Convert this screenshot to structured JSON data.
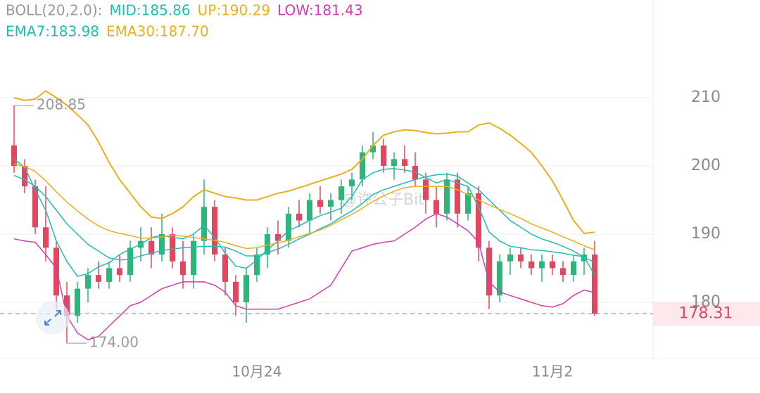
{
  "chart_data": {
    "type": "candlestick",
    "legend_rows": [
      [
        {
          "text": "BOLL(20,2.0):",
          "color": "#9a9a9a"
        },
        {
          "text": "MID:185.86",
          "color": "#22bcb2"
        },
        {
          "text": "UP:190.29",
          "color": "#e8b020"
        },
        {
          "text": "LOW:181.43",
          "color": "#d23fae"
        }
      ],
      [
        {
          "text": "EMA7:183.98",
          "color": "#22bcb2"
        },
        {
          "text": "EMA30:187.70",
          "color": "#e8b020"
        }
      ]
    ],
    "watermark": "@许公子Bit",
    "categories": [
      null,
      null,
      null,
      null,
      null,
      null,
      null,
      null,
      null,
      null,
      null,
      null,
      null,
      null,
      null,
      null,
      null,
      null,
      null,
      null,
      null,
      null,
      null,
      "10月24",
      null,
      null,
      null,
      null,
      null,
      null,
      null,
      null,
      null,
      null,
      null,
      null,
      null,
      null,
      null,
      null,
      null,
      null,
      null,
      null,
      null,
      null,
      null,
      null,
      null,
      null,
      null,
      "11月2",
      null,
      null,
      null,
      null
    ],
    "open": [
      203,
      200,
      197,
      191,
      188,
      181,
      178,
      182,
      184,
      183,
      185,
      184,
      188,
      189,
      187,
      190,
      186,
      184,
      189,
      194,
      187,
      183,
      180,
      184,
      187,
      190,
      189,
      193,
      192,
      195,
      194,
      195,
      197,
      198,
      202,
      203,
      200,
      201,
      200,
      198,
      195,
      193,
      198,
      193,
      196,
      188,
      181,
      186,
      187,
      186,
      185,
      186,
      185,
      184,
      186,
      187
    ],
    "high": [
      208.85,
      201,
      198,
      197,
      189,
      183,
      183,
      185,
      186,
      186,
      187,
      189,
      191,
      191,
      193,
      191,
      189,
      190,
      198,
      195,
      188,
      184,
      185,
      188,
      191,
      192,
      194,
      195,
      196,
      197,
      196,
      198,
      199,
      203,
      205,
      204,
      202,
      203,
      202,
      199,
      197,
      199,
      199,
      197,
      197,
      189,
      187,
      188,
      188,
      187,
      187,
      187,
      186,
      187,
      188,
      189
    ],
    "low": [
      199,
      196,
      190,
      186,
      179,
      174,
      177,
      180,
      182,
      182,
      183,
      183,
      186,
      185,
      186,
      185,
      182,
      182,
      187,
      186,
      181,
      178,
      177,
      183,
      185,
      187,
      188,
      191,
      190,
      193,
      192,
      193,
      195,
      197,
      201,
      199,
      198,
      199,
      197,
      193,
      191,
      192,
      191,
      192,
      186,
      179,
      180,
      184,
      185,
      184,
      183,
      184,
      183,
      183,
      184,
      178
    ],
    "close": [
      200,
      197,
      191,
      188,
      181,
      178,
      182,
      184,
      183,
      185,
      184,
      188,
      189,
      187,
      190,
      186,
      184,
      189,
      194,
      187,
      183,
      180,
      184,
      187,
      190,
      189,
      193,
      192,
      195,
      194,
      195,
      197,
      198,
      202,
      203,
      200,
      201,
      200,
      198,
      195,
      193,
      198,
      193,
      196,
      188,
      181,
      186,
      187,
      186,
      185,
      186,
      185,
      184,
      186,
      187,
      178.31
    ],
    "up_color": "#2fb47c",
    "down_color": "#e2475f",
    "series": [
      {
        "color": "#e8b020",
        "width": 2,
        "values": [
          210,
          209.6,
          209.8,
          211,
          210,
          208.9,
          207.5,
          206,
          203.5,
          200.5,
          198,
          196,
          194,
          192.5,
          192.3,
          193,
          194,
          195.5,
          196.5,
          196,
          195.5,
          195.3,
          195,
          195,
          195.5,
          196,
          196.3,
          196.8,
          197.3,
          197.8,
          198.3,
          198.8,
          199.5,
          201,
          203,
          204.5,
          205,
          205.3,
          205.2,
          204.9,
          204.7,
          204.8,
          205,
          205,
          206,
          206.3,
          205.5,
          204.5,
          203.3,
          202,
          200,
          197.8,
          195,
          192,
          190.1,
          190.29
        ]
      },
      {
        "color": "#22bcb2",
        "width": 1.5,
        "values": [
          198.6,
          198,
          197,
          195.5,
          193.5,
          191.5,
          190,
          188.5,
          187.5,
          186.5,
          186.2,
          186.3,
          186.8,
          187.2,
          187.6,
          187.8,
          188,
          188.1,
          188.2,
          188.2,
          188.1,
          187.5,
          186.8,
          186.8,
          187.3,
          187.8,
          188.5,
          189.3,
          190,
          190.8,
          191.5,
          192.5,
          193.4,
          194.5,
          195.8,
          196.5,
          197,
          197.5,
          198,
          198.4,
          198.7,
          198.8,
          198.5,
          197.5,
          196.5,
          195,
          193.5,
          192,
          191,
          190,
          189.3,
          188.8,
          188.2,
          187.5,
          186.6,
          185.86
        ]
      },
      {
        "color": "#d23fae",
        "width": 1.5,
        "values": [
          189.3,
          189,
          188.8,
          187,
          185,
          178,
          175.5,
          174.5,
          175,
          176.5,
          178,
          179.5,
          180,
          181,
          182,
          182.5,
          183,
          183,
          183,
          182.5,
          181.5,
          179.5,
          179,
          179,
          179,
          179,
          179.5,
          180,
          180.5,
          181.5,
          182.5,
          185,
          187.5,
          188,
          188.5,
          188.8,
          189,
          190,
          191,
          192.2,
          193,
          192.5,
          191.5,
          190.5,
          188.8,
          183,
          181.5,
          181,
          180.5,
          180,
          179.5,
          179.3,
          179.8,
          181,
          181.8,
          181.43
        ]
      },
      {
        "color": "#22bcb2",
        "width": 1.5,
        "values": [
          201,
          199.8,
          196.5,
          193.5,
          189,
          186,
          183.8,
          184.2,
          185.2,
          185.8,
          187,
          187.8,
          188.5,
          189.5,
          189.8,
          189.5,
          189.3,
          190,
          191.3,
          189.5,
          187.2,
          185.3,
          185,
          186.2,
          187.7,
          189,
          190.5,
          191.2,
          192,
          192.7,
          193.2,
          193.8,
          195.5,
          198,
          199,
          199.5,
          199.6,
          199.4,
          199.1,
          198.3,
          197.5,
          198,
          197.5,
          197,
          194,
          190.3,
          189,
          188.2,
          188,
          187.7,
          187.6,
          187.4,
          187.2,
          186.9,
          186.7,
          183.98
        ]
      },
      {
        "color": "#e8b020",
        "width": 1.5,
        "values": [
          200.3,
          199.9,
          199.2,
          197.8,
          196.2,
          194.7,
          193.4,
          192.2,
          191.2,
          190.5,
          190.1,
          189.8,
          189.4,
          189.4,
          189.6,
          189.8,
          189.7,
          189.5,
          189.3,
          189.1,
          188.8,
          188.3,
          187.9,
          188.0,
          188.4,
          188.7,
          189.1,
          189.6,
          190.1,
          190.6,
          191.3,
          192.1,
          192.9,
          193.8,
          194.8,
          195.6,
          196.3,
          196.8,
          197.0,
          197.0,
          197.0,
          197.0,
          196.5,
          195.8,
          195.0,
          194.3,
          193.6,
          193.0,
          192.3,
          191.5,
          190.9,
          190.3,
          189.6,
          189.0,
          188.3,
          187.7
        ]
      }
    ],
    "annotations": [
      {
        "text": "208.85",
        "value": 208.85,
        "at": "high"
      },
      {
        "text": "174.00",
        "value": 174,
        "at": "low"
      }
    ],
    "last_price": 178.31,
    "ylim": [
      171.75,
      224.33
    ],
    "yticks": [
      180,
      190,
      200,
      210
    ],
    "grid": true
  }
}
